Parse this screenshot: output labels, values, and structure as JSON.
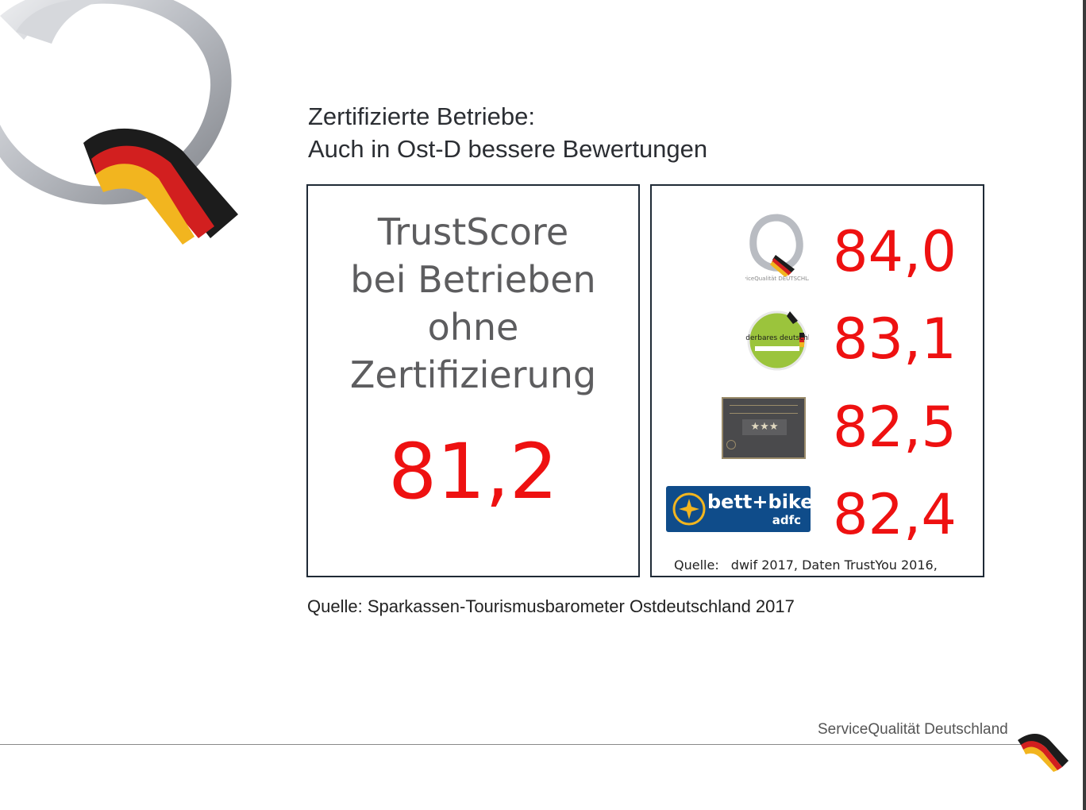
{
  "slide": {
    "title_line1": "Zertifizierte Betriebe:",
    "title_line2": "Auch in Ost-D bessere Bewertungen",
    "left_panel": {
      "label_lines": [
        "TrustScore",
        "bei Betrieben",
        "ohne",
        "Zertifizierung"
      ],
      "value": "81,2"
    },
    "right_panel": {
      "rows": [
        {
          "logo": "servicequalitaet-deutschland-logo",
          "logo_text": "ServiceQualität DEUTSCHLAND",
          "value": "84,0"
        },
        {
          "logo": "wanderbares-deutschland-logo",
          "logo_text": "wanderbares deutschland",
          "value": "83,1"
        },
        {
          "logo": "hotel-stars-plaque",
          "logo_text": "★★★",
          "value": "82,5"
        },
        {
          "logo": "bett-bike-adfc-logo",
          "logo_text": "bett+bike",
          "logo_subtext": "adfc",
          "value": "82,4"
        }
      ],
      "source_label": "Quelle:",
      "source_text": "dwif 2017, Daten TrustYou 2016,"
    },
    "caption": "Quelle: Sparkassen-Tourismusbarometer Ostdeutschland 2017",
    "footer_brand": "ServiceQualität Deutschland",
    "colors": {
      "score_red": "#ee1111",
      "title_text": "#2b2e33",
      "panel_border": "#1f2a36",
      "flag_black": "#1c1c1c",
      "flag_red": "#d21f1f",
      "flag_gold": "#f2b51f"
    }
  }
}
